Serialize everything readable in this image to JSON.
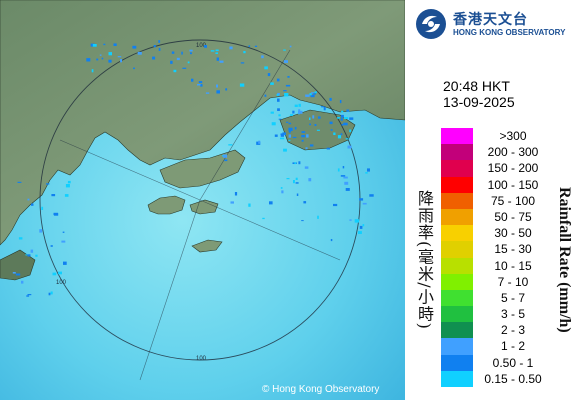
{
  "map": {
    "ring_label_top": "100",
    "ring_label_left": "100",
    "ring_label_bottom": "100",
    "copyright": "© Hong Kong Observatory"
  },
  "logo": {
    "chinese": "香港天文台",
    "english": "HONG KONG OBSERVATORY"
  },
  "timestamp": {
    "time": "20:48 HKT",
    "date": "13-09-2025"
  },
  "legend": {
    "title_chinese": "降雨率(毫米/小時)",
    "title_english": "Rainfall Rate (mm/h)",
    "items": [
      {
        "label": ">300",
        "color": "#ff00ff"
      },
      {
        "label": "200 - 300",
        "color": "#c2007a"
      },
      {
        "label": "150 - 200",
        "color": "#e0004e"
      },
      {
        "label": "100 - 150",
        "color": "#ff0000"
      },
      {
        "label": "75 - 100",
        "color": "#f06000"
      },
      {
        "label": "50 - 75",
        "color": "#f0a000"
      },
      {
        "label": "30 - 50",
        "color": "#f8d000"
      },
      {
        "label": "15 - 30",
        "color": "#e0d000"
      },
      {
        "label": "10 - 15",
        "color": "#b8e000"
      },
      {
        "label": "7 - 10",
        "color": "#80f000"
      },
      {
        "label": "5 - 7",
        "color": "#40e030"
      },
      {
        "label": "3 - 5",
        "color": "#20c040"
      },
      {
        "label": "2 - 3",
        "color": "#109050"
      },
      {
        "label": "1 - 2",
        "color": "#40a0ff"
      },
      {
        "label": "0.50 - 1",
        "color": "#1080f0"
      },
      {
        "label": "0.15 - 0.50",
        "color": "#10d0ff"
      }
    ]
  }
}
